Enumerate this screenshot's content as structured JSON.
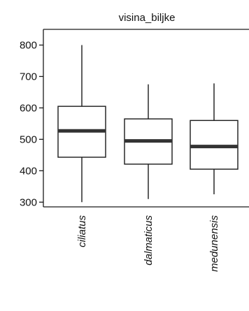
{
  "chart_data": {
    "type": "box",
    "title": "visina_biljke",
    "xlabel": "",
    "ylabel": "",
    "ylim": [
      285,
      850
    ],
    "yticks": [
      300,
      400,
      500,
      600,
      700,
      800
    ],
    "categories": [
      "ciliatus",
      "dalmaticus",
      "medunensis"
    ],
    "boxes": [
      {
        "category": "ciliatus",
        "min": 300,
        "q1": 443,
        "median": 527,
        "q3": 605,
        "max": 800
      },
      {
        "category": "dalmaticus",
        "min": 310,
        "q1": 421,
        "median": 495,
        "q3": 565,
        "max": 675
      },
      {
        "category": "medunensis",
        "min": 325,
        "q1": 405,
        "median": 477,
        "q3": 560,
        "max": 678
      }
    ],
    "grid": false,
    "colors": {
      "stroke": "#1a1a1a",
      "median": "#333333",
      "box_fill": "#ffffff"
    }
  }
}
